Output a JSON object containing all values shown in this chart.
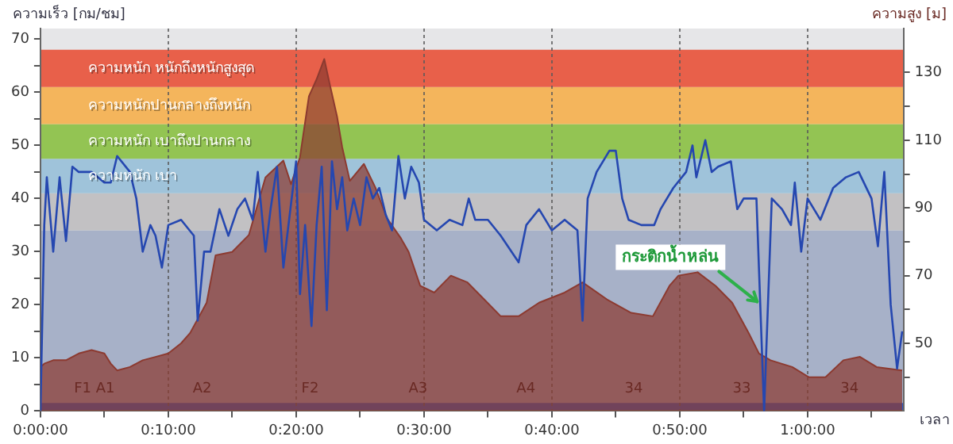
{
  "chart_data": {
    "type": "line",
    "xlabel": "เวลา",
    "ylabel": "ความเร็ว [กม/ชม]",
    "y2label": "ความสูง [ม]",
    "xlim": [
      0,
      67.5
    ],
    "xticks": [
      {
        "value": 0,
        "label": "0:00:00"
      },
      {
        "value": 5,
        "label": null
      },
      {
        "value": 10,
        "label": "0:10:00"
      },
      {
        "value": 15,
        "label": null
      },
      {
        "value": 20,
        "label": "0:20:00"
      },
      {
        "value": 25,
        "label": null
      },
      {
        "value": 30,
        "label": "0:30:00"
      },
      {
        "value": 35,
        "label": null
      },
      {
        "value": 40,
        "label": "0:40:00"
      },
      {
        "value": 45,
        "label": null
      },
      {
        "value": 50,
        "label": "0:50:00"
      },
      {
        "value": 55,
        "label": null
      },
      {
        "value": 60,
        "label": "1:00:00"
      },
      {
        "value": 65,
        "label": null
      }
    ],
    "ylim": [
      0,
      72
    ],
    "yticks": [
      0,
      {
        "value": 5,
        "label": null
      },
      10,
      {
        "value": 15,
        "label": null
      },
      20,
      {
        "value": 25,
        "label": null
      },
      30,
      {
        "value": 35,
        "label": null
      },
      40,
      {
        "value": 45,
        "label": null
      },
      50,
      {
        "value": 55,
        "label": null
      },
      60,
      {
        "value": 65,
        "label": null
      },
      70
    ],
    "y2lim": [
      30,
      143
    ],
    "y2ticks": [
      {
        "value": 40,
        "label": null
      },
      50,
      {
        "value": 60,
        "label": null
      },
      70,
      {
        "value": 80,
        "label": null
      },
      90,
      {
        "value": 100,
        "label": null
      },
      110,
      {
        "value": 120,
        "label": null
      },
      130
    ],
    "grid": "x",
    "bands": [
      {
        "axis": "y",
        "from": 0,
        "to": 34,
        "label": null,
        "color": "#a7b1c8"
      },
      {
        "axis": "y",
        "from": 34,
        "to": 41,
        "label": null,
        "color": "#c2c1c3"
      },
      {
        "axis": "y",
        "from": 41,
        "to": 47.5,
        "label": "ความหนัก เบา",
        "color": "#9fc3da"
      },
      {
        "axis": "y",
        "from": 47.5,
        "to": 54,
        "label": "ความหนัก เบาถึงปานกลาง",
        "color": "#93c453"
      },
      {
        "axis": "y",
        "from": 54,
        "to": 61,
        "label": "ความหนักปานกลางถึงหนัก",
        "color": "#f4b55c"
      },
      {
        "axis": "y",
        "from": 61,
        "to": 68,
        "label": "ความหนัก หนักถึงหนักสูงสุด",
        "color": "#e8604a"
      },
      {
        "axis": "y",
        "from": 0,
        "to": 1.5,
        "label": null,
        "color": "#2c5bc8"
      }
    ],
    "annotations": [
      "F1 A1",
      "A2",
      "F2",
      "A3",
      "A4",
      "34",
      "33",
      "34",
      {
        "text": "กระติกน้ำหล่น",
        "x": 56.3,
        "y": 20
      }
    ],
    "series": [
      {
        "type": "area",
        "axis": "y2",
        "color": "#8c3a30",
        "x": [
          0,
          0.3,
          1,
          2,
          3,
          4,
          5,
          5.5,
          6,
          7,
          8,
          9,
          10,
          11,
          11.7,
          13,
          13.7,
          15,
          16.3,
          17.6,
          19,
          19.6,
          20.3,
          21,
          21.6,
          22.2,
          22.6,
          23.2,
          23.6,
          24.2,
          25.3,
          26.2,
          27.1,
          28.2,
          28.8,
          29.7,
          30.8,
          32.1,
          33.4,
          34.7,
          36,
          37.4,
          39,
          41,
          42.4,
          44.3,
          46.2,
          47.9,
          49.2,
          49.9,
          51.4,
          52.8,
          54.1,
          55.4,
          56.2,
          57.1,
          58.8,
          60.1,
          61.4,
          62.8,
          64.1,
          65.4,
          67.4
        ],
        "values": [
          43,
          44,
          45,
          45,
          47,
          48,
          47,
          44,
          42,
          43,
          45,
          46,
          47,
          50,
          53,
          62,
          76,
          77,
          82,
          99,
          104,
          97,
          105,
          123,
          128,
          134,
          127,
          117,
          108,
          98,
          103,
          96,
          87,
          81,
          77,
          67,
          65,
          70,
          68,
          63,
          58,
          58,
          62,
          65,
          68,
          63,
          59,
          58,
          67,
          70,
          71,
          67,
          62,
          53,
          47,
          45,
          43,
          40,
          40,
          45,
          46,
          43,
          42
        ]
      },
      {
        "color": "#2547b0",
        "x": [
          0,
          0.3,
          0.5,
          1,
          1.5,
          2,
          2.5,
          3,
          4,
          5,
          5.5,
          6,
          7,
          7.5,
          8,
          8.6,
          9,
          9.5,
          10,
          11,
          12,
          12.3,
          12.8,
          13.3,
          14,
          14.7,
          15.4,
          16,
          16.6,
          17,
          17.6,
          18,
          18.5,
          19,
          19.5,
          20,
          20.3,
          20.7,
          21.2,
          21.6,
          22,
          22.4,
          22.8,
          23.2,
          23.6,
          24,
          24.5,
          25,
          25.5,
          26,
          26.5,
          27,
          27.5,
          28,
          28.5,
          29,
          29.6,
          30,
          31,
          32,
          33,
          33.5,
          34,
          35,
          36,
          37.4,
          38,
          39,
          40,
          41,
          42,
          42.4,
          42.8,
          43.5,
          44.5,
          45,
          45.5,
          46,
          47,
          48,
          48.5,
          49.5,
          50.5,
          51,
          51.3,
          52,
          52.5,
          53,
          54,
          54.5,
          55,
          56,
          56.6,
          57.2,
          58,
          58.7,
          59,
          59.5,
          60,
          61,
          62,
          63,
          64,
          65,
          65.5,
          66,
          66.5,
          67,
          67.4
        ],
        "values": [
          0,
          35,
          44,
          30,
          44,
          32,
          46,
          45,
          45,
          43,
          43,
          48,
          45,
          40,
          30,
          35,
          33,
          27,
          35,
          36,
          33,
          17,
          30,
          30,
          38,
          33,
          38,
          40,
          36,
          45,
          30,
          38,
          46,
          27,
          37,
          47,
          22,
          35,
          16,
          35,
          46,
          19,
          47,
          38,
          44,
          34,
          40,
          35,
          44,
          40,
          42,
          37,
          34,
          48,
          40,
          46,
          43,
          36,
          34,
          36,
          35,
          40,
          36,
          36,
          33,
          28,
          35,
          38,
          34,
          36,
          34,
          17,
          40,
          45,
          49,
          49,
          40,
          36,
          35,
          35,
          38,
          42,
          45,
          50,
          44,
          51,
          45,
          46,
          47,
          38,
          40,
          40,
          0,
          40,
          38,
          35,
          43,
          30,
          40,
          36,
          42,
          44,
          45,
          40,
          31,
          45,
          20,
          8,
          15
        ]
      }
    ]
  }
}
